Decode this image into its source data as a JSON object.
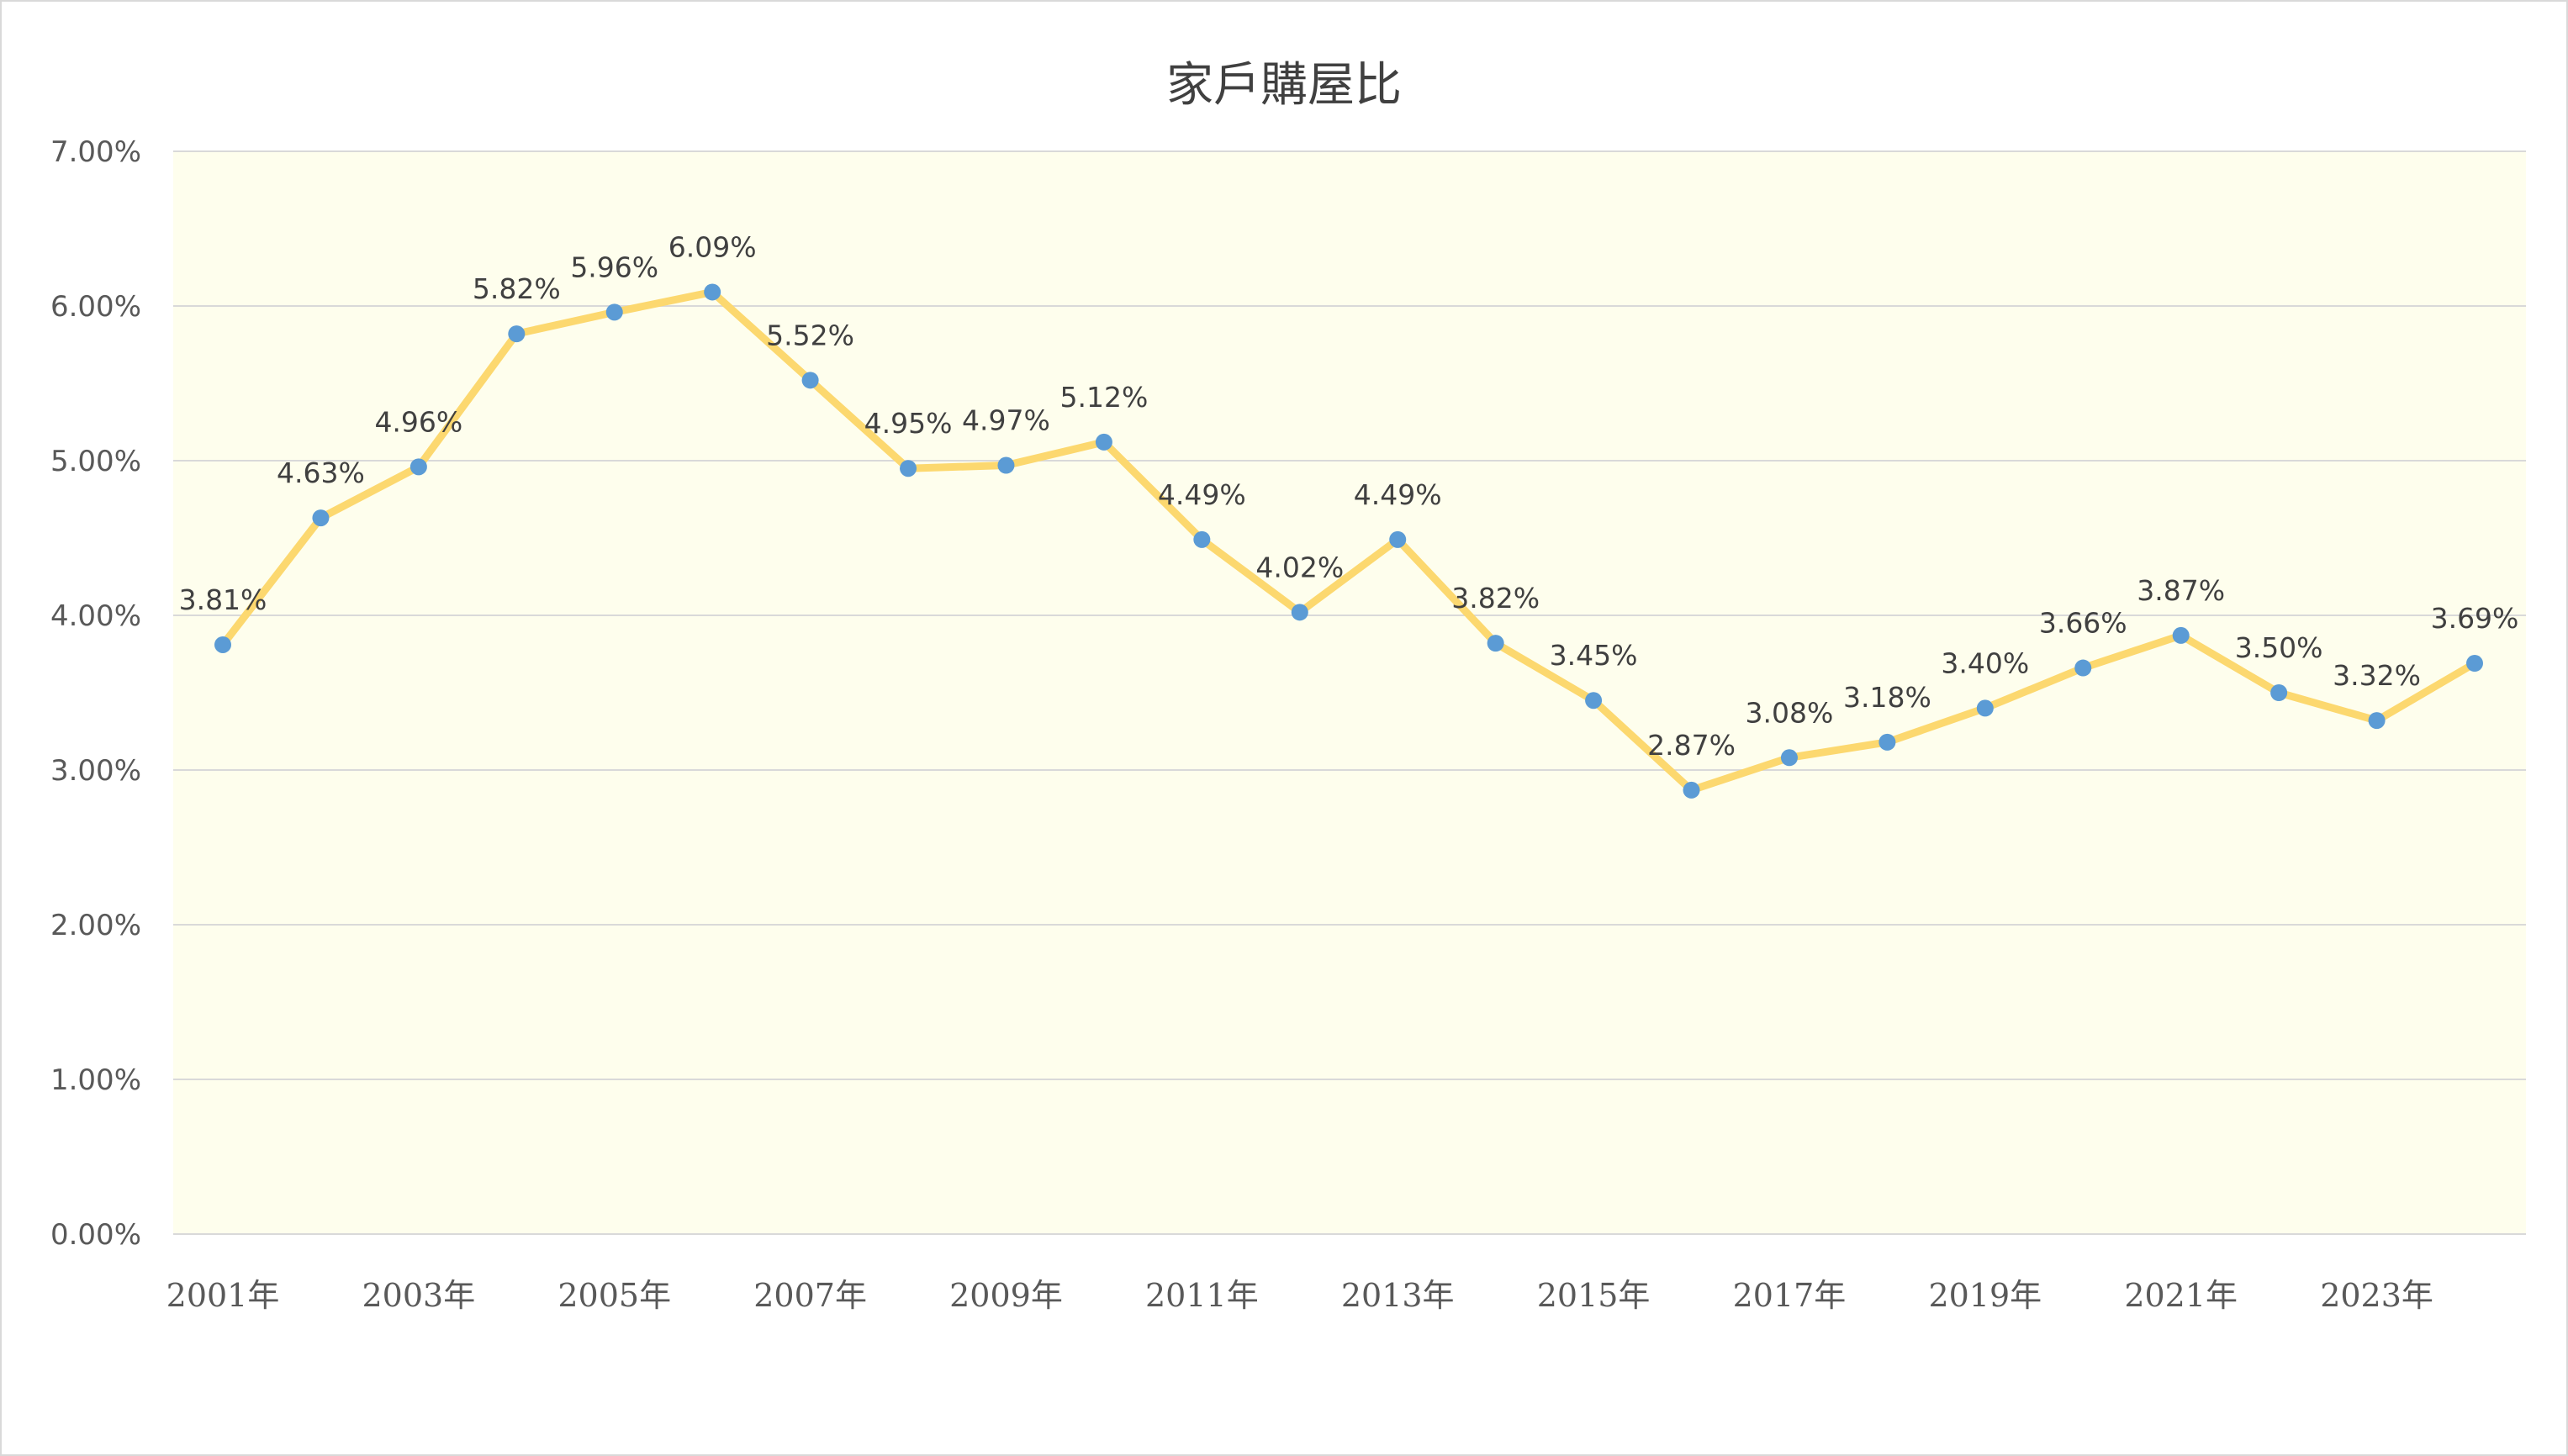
{
  "chart_data": {
    "type": "line",
    "title": "家戶購屋比",
    "xlabel": "",
    "ylabel": "",
    "ylim": [
      0,
      0.07
    ],
    "y_ticks": [
      "0.00%",
      "1.00%",
      "2.00%",
      "3.00%",
      "4.00%",
      "5.00%",
      "6.00%",
      "7.00%"
    ],
    "x": [
      "2001年",
      "2002年",
      "2003年",
      "2004年",
      "2005年",
      "2006年",
      "2007年",
      "2008年",
      "2009年",
      "2010年",
      "2011年",
      "2012年",
      "2013年",
      "2014年",
      "2015年",
      "2016年",
      "2017年",
      "2018年",
      "2019年",
      "2020年",
      "2021年",
      "2022年",
      "2023年",
      "2024年"
    ],
    "x_tick_labels": [
      "2001年",
      "2003年",
      "2005年",
      "2007年",
      "2009年",
      "2011年",
      "2013年",
      "2015年",
      "2017年",
      "2019年",
      "2021年",
      "2023年"
    ],
    "series": [
      {
        "values": [
          0.0381,
          0.0463,
          0.0496,
          0.0582,
          0.0596,
          0.0609,
          0.0552,
          0.0495,
          0.0497,
          0.0512,
          0.0449,
          0.0402,
          0.0449,
          0.0382,
          0.0345,
          0.0287,
          0.0308,
          0.0318,
          0.034,
          0.0366,
          0.0387,
          0.035,
          0.0332,
          0.0369
        ],
        "data_labels": [
          "3.81%",
          "4.63%",
          "4.96%",
          "5.82%",
          "5.96%",
          "6.09%",
          "5.52%",
          "4.95%",
          "4.97%",
          "5.12%",
          "4.49%",
          "4.02%",
          "4.49%",
          "3.82%",
          "3.45%",
          "2.87%",
          "3.08%",
          "3.18%",
          "3.40%",
          "3.66%",
          "3.87%",
          "3.50%",
          "3.32%",
          "3.69%"
        ]
      }
    ],
    "grid": true,
    "legend": "none",
    "colors": {
      "plot_background": "#fefeed",
      "line": "#fcd86f",
      "marker": "#5b9bd5",
      "gridline": "#d9d9d9"
    }
  }
}
